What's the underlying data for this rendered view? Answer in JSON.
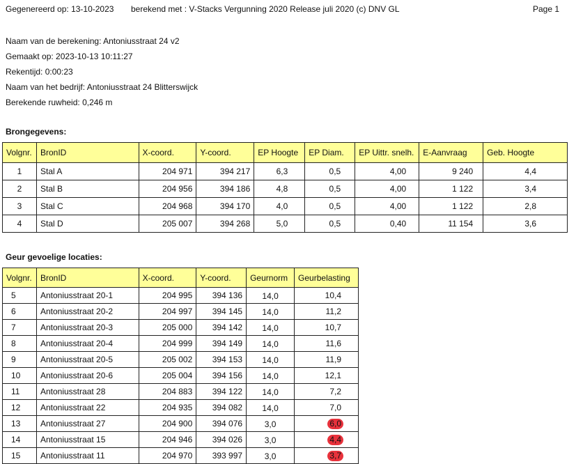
{
  "header": {
    "generated": "Gegenereerd op:  13-10-2023",
    "calculated_with": "berekend met : V-Stacks Vergunning 2020  Release juli 2020   (c) DNV GL",
    "page": "Page   1"
  },
  "info": {
    "calc_name": "Naam van de berekening:  Antoniusstraat 24 v2",
    "made_on": "Gemaakt op:   2023-10-13   10:11:27",
    "calc_time": "Rekentijd:   0:00:23",
    "company": "Naam van het bedrijf:  Antoniusstraat 24 Blitterswijck",
    "roughness": "Berekende ruwheid: 0,246 m"
  },
  "sources": {
    "title": "Brongegevens:",
    "headers": [
      "Volgnr.",
      "BronID",
      "X-coord.",
      "Y-coord.",
      "EP Hoogte",
      "EP Diam.",
      "EP Uittr. snelh.",
      "E-Aanvraag",
      "Geb. Hoogte"
    ],
    "rows": [
      [
        "1",
        "Stal A",
        "204 971",
        "394 217",
        "6,3",
        "0,5",
        "4,00",
        "9 240",
        "4,4"
      ],
      [
        "2",
        "Stal B",
        "204 956",
        "394 186",
        "4,8",
        "0,5",
        "4,00",
        "1 122",
        "3,4"
      ],
      [
        "3",
        "Stal C",
        "204 968",
        "394 170",
        "4,0",
        "0,5",
        "4,00",
        "1 122",
        "2,8"
      ],
      [
        "4",
        "Stal D",
        "205 007",
        "394 268",
        "5,0",
        "0,5",
        "0,40",
        "11 154",
        "3,6"
      ]
    ]
  },
  "locations": {
    "title": "Geur gevoelige locaties:",
    "headers": [
      "Volgnr.",
      "BronID",
      "X-coord.",
      "Y-coord.",
      "Geurnorm",
      "Geurbelasting"
    ],
    "rows": [
      [
        "5",
        "Antoniusstraat 20-1",
        "204 995",
        "394 136",
        "14,0",
        "10,4"
      ],
      [
        "6",
        "Antoniusstraat 20-2",
        "204 997",
        "394 145",
        "14,0",
        "11,2"
      ],
      [
        "7",
        "Antoniusstraat 20-3",
        "205 000",
        "394 142",
        "14,0",
        "10,7"
      ],
      [
        "8",
        "Antoniusstraat 20-4",
        "204 999",
        "394 149",
        "14,0",
        "11,6"
      ],
      [
        "9",
        "Antoniusstraat 20-5",
        "205 002",
        "394 153",
        "14,0",
        "11,9"
      ],
      [
        "10",
        "Antoniusstraat 20-6",
        "205 004",
        "394 156",
        "14,0",
        "12,1"
      ],
      [
        "11",
        "Antoniusstraat 28",
        "204 883",
        "394 122",
        "14,0",
        "7,2"
      ],
      [
        "12",
        "Antoniusstraat 22",
        "204 935",
        "394 082",
        "14,0",
        "7,0"
      ],
      [
        "13",
        "Antoniusstraat 27",
        "204 900",
        "394 076",
        "3,0",
        "6,0"
      ],
      [
        "14",
        "Antoniusstraat 15",
        "204 946",
        "394 026",
        "3,0",
        "4,4"
      ],
      [
        "15",
        "Antoniusstraat 11",
        "204 970",
        "393 997",
        "3,0",
        "3,7"
      ]
    ],
    "exceeded_color": "#e8323c"
  }
}
